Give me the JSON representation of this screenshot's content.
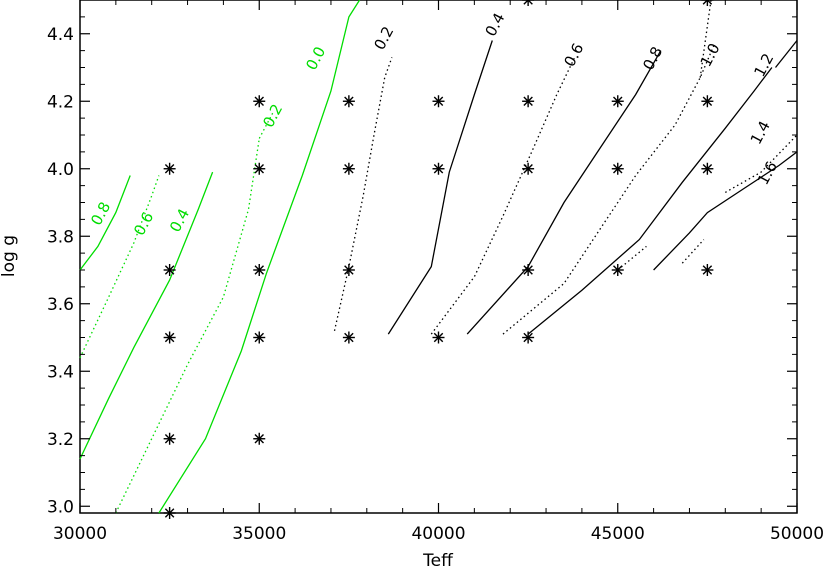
{
  "chart_data": {
    "type": "contour",
    "xlabel": "Teff",
    "ylabel": "log g",
    "xlim": [
      30000,
      50000
    ],
    "ylim": [
      2.98,
      4.5
    ],
    "x_ticks": [
      30000,
      35000,
      40000,
      45000,
      50000
    ],
    "x_tick_labels": [
      "30000",
      "35000",
      "40000",
      "45000",
      "50000"
    ],
    "y_ticks": [
      3.0,
      3.2,
      3.4,
      3.6,
      3.8,
      4.0,
      4.2,
      4.4
    ],
    "y_tick_labels": [
      "3.0",
      "3.2",
      "3.4",
      "3.6",
      "3.8",
      "4.0",
      "4.2",
      "4.4"
    ],
    "grid_points": [
      {
        "x": 32500,
        "y": 2.98
      },
      {
        "x": 32500,
        "y": 3.2
      },
      {
        "x": 32500,
        "y": 3.5
      },
      {
        "x": 32500,
        "y": 3.7
      },
      {
        "x": 32500,
        "y": 4.0
      },
      {
        "x": 35000,
        "y": 3.2
      },
      {
        "x": 35000,
        "y": 3.5
      },
      {
        "x": 35000,
        "y": 3.7
      },
      {
        "x": 35000,
        "y": 4.0
      },
      {
        "x": 35000,
        "y": 4.2
      },
      {
        "x": 37500,
        "y": 3.5
      },
      {
        "x": 37500,
        "y": 3.7
      },
      {
        "x": 37500,
        "y": 4.0
      },
      {
        "x": 37500,
        "y": 4.2
      },
      {
        "x": 40000,
        "y": 3.5
      },
      {
        "x": 40000,
        "y": 4.0
      },
      {
        "x": 40000,
        "y": 4.2
      },
      {
        "x": 42500,
        "y": 3.5
      },
      {
        "x": 42500,
        "y": 3.7
      },
      {
        "x": 42500,
        "y": 4.0
      },
      {
        "x": 42500,
        "y": 4.2
      },
      {
        "x": 42500,
        "y": 4.5
      },
      {
        "x": 45000,
        "y": 3.7
      },
      {
        "x": 45000,
        "y": 4.0
      },
      {
        "x": 45000,
        "y": 4.2
      },
      {
        "x": 47500,
        "y": 3.7
      },
      {
        "x": 47500,
        "y": 4.0
      },
      {
        "x": 47500,
        "y": 4.2
      },
      {
        "x": 47500,
        "y": 4.5
      }
    ],
    "contours": [
      {
        "level": "0.8",
        "label": "0.8",
        "color": "#00dd00",
        "dash": "solid",
        "points": [
          [
            30000,
            3.7
          ],
          [
            30500,
            3.77
          ],
          [
            31000,
            3.87
          ],
          [
            31400,
            3.98
          ]
        ],
        "label_at": [
          30700,
          3.86
        ]
      },
      {
        "level": "0.6",
        "label": "0.6",
        "color": "#00dd00",
        "dash": "dotted",
        "points": [
          [
            30000,
            3.44
          ],
          [
            30800,
            3.62
          ],
          [
            31500,
            3.78
          ],
          [
            32000,
            3.92
          ],
          [
            32200,
            3.98
          ]
        ],
        "label_at": [
          31900,
          3.83
        ]
      },
      {
        "level": "0.4",
        "label": "0.4",
        "color": "#00dd00",
        "dash": "solid",
        "points": [
          [
            30000,
            3.14
          ],
          [
            30800,
            3.32
          ],
          [
            31500,
            3.47
          ],
          [
            32500,
            3.67
          ],
          [
            33300,
            3.88
          ],
          [
            33700,
            3.99
          ]
        ],
        "label_at": [
          32900,
          3.84
        ]
      },
      {
        "level": "0.6",
        "label": "",
        "color": "#00dd00",
        "dash": "dotted",
        "points": [
          [
            31000,
            2.98
          ],
          [
            32000,
            3.2
          ],
          [
            33000,
            3.42
          ],
          [
            34000,
            3.62
          ],
          [
            34700,
            3.88
          ],
          [
            35000,
            4.09
          ]
        ],
        "label_at": null
      },
      {
        "level": "0.2",
        "label": "0.2",
        "color": "#00dd00",
        "dash": "dotted",
        "points": [
          [
            35000,
            4.09
          ],
          [
            35400,
            4.17
          ]
        ],
        "label_at": [
          35500,
          4.15
        ]
      },
      {
        "level": "0.0",
        "label": "0.0",
        "color": "#00dd00",
        "dash": "solid",
        "points": [
          [
            32200,
            2.98
          ],
          [
            33500,
            3.2
          ],
          [
            34500,
            3.46
          ],
          [
            35200,
            3.69
          ],
          [
            36200,
            3.98
          ],
          [
            37000,
            4.23
          ],
          [
            37500,
            4.45
          ],
          [
            37800,
            4.5
          ]
        ],
        "label_at": [
          36700,
          4.32
        ]
      },
      {
        "level": "0.2",
        "label": "0.2",
        "color": "#000000",
        "dash": "dotted",
        "points": [
          [
            37100,
            3.52
          ],
          [
            37500,
            3.71
          ],
          [
            37900,
            3.92
          ],
          [
            38200,
            4.1
          ],
          [
            38500,
            4.27
          ],
          [
            38700,
            4.33
          ]
        ],
        "label_at": [
          38600,
          4.38
        ]
      },
      {
        "level": "0.4",
        "label": "0.4",
        "color": "#000000",
        "dash": "solid",
        "points": [
          [
            38600,
            3.51
          ],
          [
            39800,
            3.71
          ],
          [
            40300,
            3.99
          ],
          [
            41000,
            4.22
          ],
          [
            41500,
            4.38
          ]
        ],
        "label_at": [
          41700,
          4.42
        ]
      },
      {
        "level": "0.6",
        "label": "0.6",
        "color": "#000000",
        "dash": "dotted",
        "points": [
          [
            39800,
            3.51
          ],
          [
            41000,
            3.68
          ],
          [
            41800,
            3.86
          ],
          [
            42600,
            4.05
          ],
          [
            43300,
            4.22
          ],
          [
            43800,
            4.33
          ]
        ],
        "label_at": [
          43900,
          4.33
        ]
      },
      {
        "level": "0.8",
        "label": "0.8",
        "color": "#000000",
        "dash": "solid",
        "points": [
          [
            40800,
            3.51
          ],
          [
            42500,
            3.71
          ],
          [
            43500,
            3.9
          ],
          [
            44500,
            4.06
          ],
          [
            45500,
            4.22
          ],
          [
            46200,
            4.35
          ]
        ],
        "label_at": [
          46100,
          4.32
        ]
      },
      {
        "level": "1.0",
        "label": "1.0",
        "color": "#000000",
        "dash": "dotted",
        "points": [
          [
            41800,
            3.51
          ],
          [
            43500,
            3.66
          ],
          [
            44500,
            3.82
          ],
          [
            45500,
            3.98
          ],
          [
            46600,
            4.13
          ],
          [
            47300,
            4.27
          ],
          [
            47700,
            4.37
          ]
        ],
        "label_at": [
          47700,
          4.33
        ]
      },
      {
        "level": "1.2",
        "label": "1.2",
        "color": "#000000",
        "dash": "solid",
        "points": [
          [
            42500,
            3.51
          ],
          [
            44000,
            3.64
          ],
          [
            45600,
            3.79
          ],
          [
            46800,
            3.96
          ],
          [
            48000,
            4.12
          ],
          [
            48800,
            4.23
          ],
          [
            49300,
            4.3
          ]
        ],
        "label_at": [
          49200,
          4.3
        ]
      },
      {
        "level": "1.4",
        "label": "1.4",
        "color": "#000000",
        "dash": "dotted",
        "points": [
          [
            45000,
            3.7
          ],
          [
            45800,
            3.77
          ]
        ],
        "label_at": [
          49100,
          4.1
        ]
      },
      {
        "level": "1.6",
        "label": "1.6",
        "color": "#000000",
        "dash": "solid",
        "points": [
          [
            46000,
            3.7
          ],
          [
            47000,
            3.81
          ],
          [
            47500,
            3.87
          ],
          [
            48500,
            3.94
          ],
          [
            49500,
            4.01
          ],
          [
            50000,
            4.05
          ]
        ],
        "label_at": [
          49300,
          3.98
        ]
      },
      {
        "level": "1.4",
        "label": "",
        "color": "#000000",
        "dash": "dotted",
        "points": [
          [
            48000,
            3.93
          ],
          [
            49000,
            3.99
          ],
          [
            50000,
            4.1
          ]
        ],
        "label_at": null
      },
      {
        "level": "1.2",
        "label": "",
        "color": "#000000",
        "dash": "solid",
        "points": [
          [
            49400,
            4.3
          ],
          [
            50000,
            4.38
          ]
        ],
        "label_at": null
      },
      {
        "level": "1.0",
        "label": "",
        "color": "#000000",
        "dash": "dotted",
        "points": [
          [
            47300,
            4.27
          ],
          [
            47600,
            4.5
          ]
        ],
        "label_at": null
      },
      {
        "level": "1.6",
        "label": "",
        "color": "#000000",
        "dash": "dotted",
        "points": [
          [
            46800,
            3.72
          ],
          [
            47400,
            3.79
          ]
        ],
        "label_at": null
      }
    ]
  }
}
